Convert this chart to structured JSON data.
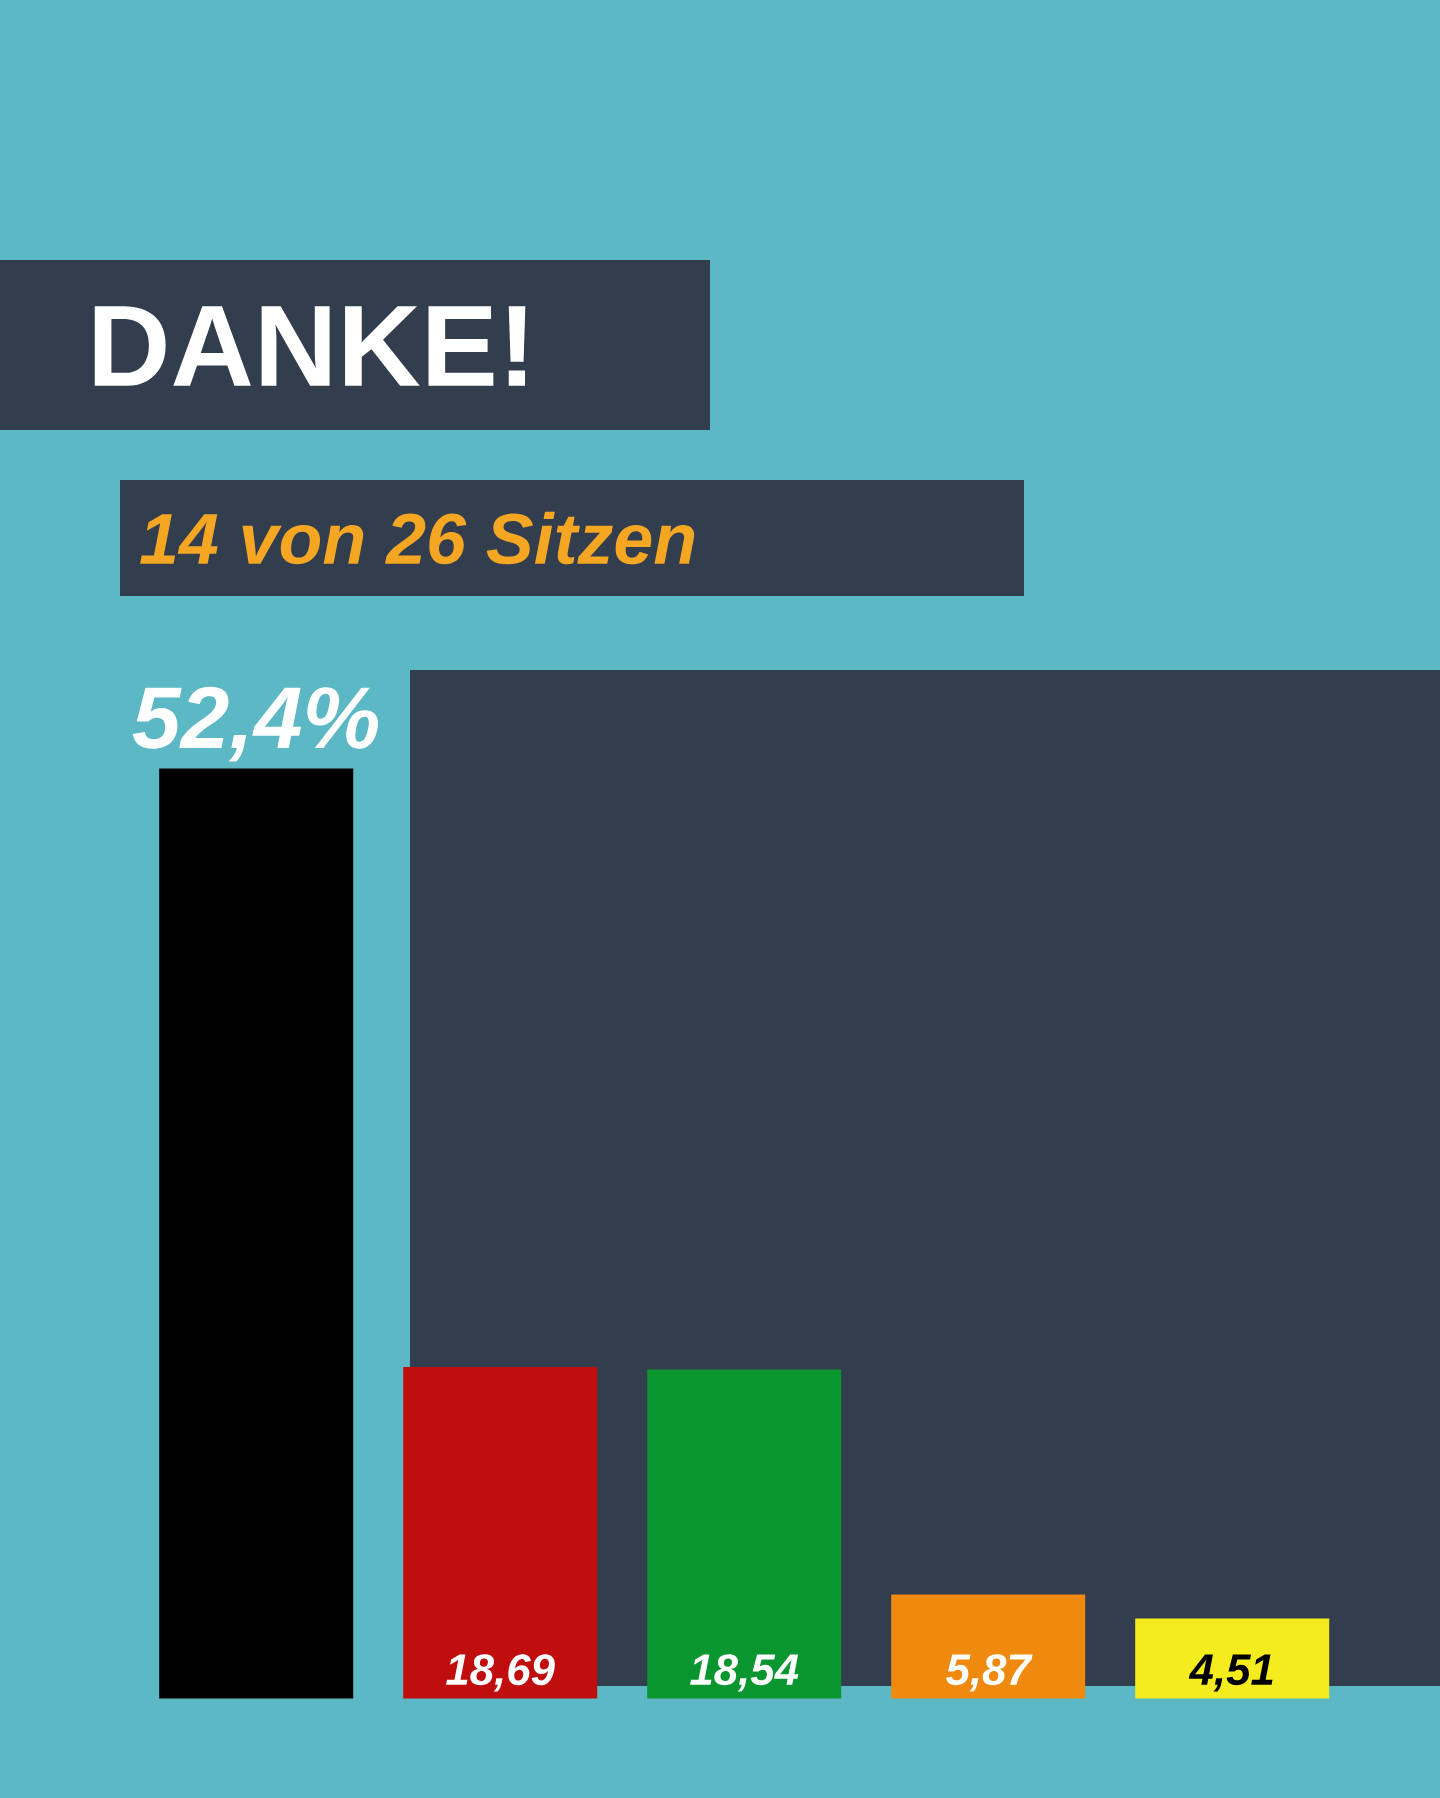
{
  "chart_data": {
    "type": "bar",
    "title": "DANKE!",
    "subtitle": "14 von 26 Sitzen",
    "categories": [
      null,
      null,
      null,
      null,
      null
    ],
    "values": [
      52.4,
      18.69,
      18.54,
      5.87,
      4.51
    ],
    "colors": [
      "#000000",
      "#c00d0d",
      "#0a962e",
      "#f08a0f",
      "#f5ec20"
    ],
    "value_labels": [
      "52,4%",
      "18,69",
      "18,54",
      "5,87",
      "4,51"
    ]
  }
}
